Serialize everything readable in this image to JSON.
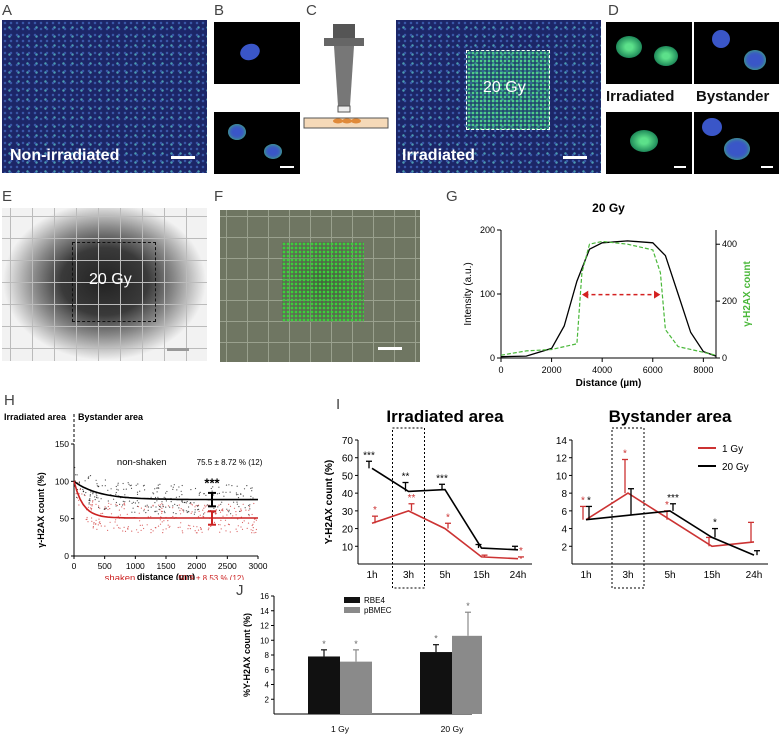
{
  "panels": {
    "A": {
      "letter": "A",
      "caption": "Non-irradiated"
    },
    "B": {
      "letter": "B"
    },
    "C": {
      "letter": "C",
      "caption": "Irradiated",
      "box_label": "20 Gy"
    },
    "D": {
      "letter": "D",
      "label_left": "Irradiated",
      "label_right": "Bystander"
    },
    "E": {
      "letter": "E",
      "box_label": "20 Gy"
    },
    "F": {
      "letter": "F"
    },
    "G": {
      "letter": "G"
    },
    "H": {
      "letter": "H",
      "region_irradiated": "Irradiated area",
      "region_bystander": "Bystander area"
    },
    "I": {
      "letter": "I"
    },
    "J": {
      "letter": "J"
    }
  },
  "chart_data": [
    {
      "id": "G",
      "type": "line",
      "title": "20 Gy",
      "xlabel": "Distance (µm)",
      "ylabel": "Intensity (a.u.)",
      "y2label": "γ-H2AX count",
      "xlim": [
        0,
        8500
      ],
      "ylim": [
        0,
        200
      ],
      "y2lim": [
        0,
        450
      ],
      "xticks": [
        0,
        2000,
        4000,
        6000,
        8000
      ],
      "yticks": [
        0,
        100,
        200
      ],
      "y2ticks": [
        0,
        200,
        400
      ],
      "series": [
        {
          "color": "#000000",
          "axis": "left",
          "x": [
            0,
            1000,
            2000,
            2500,
            3000,
            3500,
            4000,
            5000,
            6000,
            6500,
            7000,
            7500,
            8000,
            8500
          ],
          "y": [
            2,
            3,
            15,
            50,
            120,
            170,
            180,
            183,
            180,
            160,
            100,
            40,
            10,
            3
          ]
        },
        {
          "color": "#4ab83a",
          "axis": "right",
          "x": [
            0,
            1000,
            2000,
            3000,
            3200,
            3500,
            4000,
            5000,
            6000,
            6300,
            6500,
            7000,
            8000,
            8500
          ],
          "y": [
            10,
            25,
            30,
            50,
            300,
            400,
            410,
            400,
            380,
            300,
            100,
            40,
            20,
            10
          ]
        }
      ],
      "annotation": "red dashed double arrow spanning ~3200–6300 µm"
    },
    {
      "id": "H",
      "type": "scatter",
      "xlabel": "distance (µm)",
      "ylabel": "γ-H2AX count (%)",
      "xlim": [
        0,
        3000
      ],
      "ylim": [
        0,
        150
      ],
      "xticks": [
        0,
        500,
        1000,
        1500,
        2000,
        2500,
        3000
      ],
      "yticks": [
        0,
        50,
        100,
        150
      ],
      "series": [
        {
          "name": "non-shaken",
          "color": "#000000",
          "plateau": 75.5,
          "start": 100,
          "stat": "75.5 ± 8.72 % (12)"
        },
        {
          "name": "shaken",
          "color": "#cc2222",
          "plateau": 50.9,
          "start": 100,
          "stat": "50.9 ± 8.53 % (12)"
        }
      ],
      "significance": "***"
    },
    {
      "id": "I1",
      "type": "line",
      "title": "Irradiated area",
      "ylabel": "Y-H2AX count (%)",
      "categories": [
        "1h",
        "3h",
        "5h",
        "15h",
        "24h"
      ],
      "ylim": [
        0,
        70
      ],
      "yticks": [
        10,
        20,
        30,
        40,
        50,
        60,
        70
      ],
      "series": [
        {
          "color": "#000000",
          "values": [
            54,
            41,
            42,
            9,
            8
          ],
          "err": [
            4,
            5,
            3,
            2,
            2
          ],
          "sig": [
            "***",
            "**",
            "***",
            "",
            ""
          ]
        },
        {
          "color": "#cc3333",
          "values": [
            23,
            30,
            20,
            4,
            3
          ],
          "err": [
            4,
            4,
            3,
            1,
            1
          ],
          "sig": [
            "*",
            "**",
            "*",
            "",
            "*"
          ]
        }
      ]
    },
    {
      "id": "I2",
      "type": "line",
      "title": "Bystander area",
      "categories": [
        "1h",
        "3h",
        "5h",
        "15h",
        "24h"
      ],
      "ylim": [
        0,
        14
      ],
      "yticks": [
        2,
        4,
        6,
        8,
        10,
        12,
        14
      ],
      "series": [
        {
          "name": "1 Gy",
          "color": "#cc3333",
          "values": [
            5,
            8,
            5,
            2,
            2.5
          ],
          "err": [
            1.5,
            3.8,
            1,
            1,
            2.2
          ],
          "sig": [
            "*",
            "*",
            "*",
            "",
            ""
          ]
        },
        {
          "name": "20 Gy",
          "color": "#000000",
          "values": [
            5,
            5.5,
            6,
            3,
            1
          ],
          "err": [
            1.5,
            3,
            0.8,
            1,
            0.5
          ],
          "sig": [
            "*",
            "",
            "***",
            "*",
            ""
          ]
        }
      ]
    },
    {
      "id": "J",
      "type": "bar",
      "ylabel": "%Y-H2AX count (%)",
      "categories": [
        "1 Gy",
        "20 Gy"
      ],
      "ylim": [
        0,
        16
      ],
      "yticks": [
        2,
        4,
        6,
        8,
        10,
        12,
        14,
        16
      ],
      "series": [
        {
          "name": "RBE4",
          "color": "#111111",
          "values": [
            7.8,
            8.4
          ],
          "err": [
            0.9,
            1.0
          ]
        },
        {
          "name": "pBMEC",
          "color": "#8a8a8a",
          "values": [
            7.1,
            10.6
          ],
          "err": [
            1.6,
            3.2
          ]
        }
      ],
      "sig": "*"
    }
  ]
}
